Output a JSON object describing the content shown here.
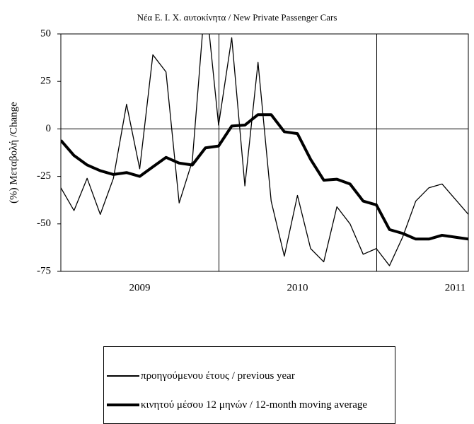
{
  "chart_data": {
    "type": "line",
    "title": "Νέα Ε. Ι. Χ. αυτοκίνητα / New Private Passenger Cars",
    "y_label": "(%) Μεταβολή /Change",
    "categories": [
      null,
      null,
      null,
      null,
      null,
      null,
      "2009",
      null,
      null,
      null,
      null,
      null,
      null,
      null,
      null,
      null,
      null,
      null,
      "2010",
      null,
      null,
      null,
      null,
      null,
      null,
      null,
      null,
      null,
      null,
      null,
      "2011",
      null
    ],
    "series": [
      {
        "name": "προηγούμενου έτους / previous year",
        "color": "#000000",
        "width": 1.3,
        "values": [
          -31,
          -43,
          -26,
          -45,
          -26,
          13,
          -21,
          39,
          30,
          -39,
          -17,
          70,
          2,
          48,
          -30,
          35,
          -38,
          -67,
          -35,
          -63,
          -70,
          -41,
          -50,
          -66,
          -63,
          -72,
          -57,
          -38,
          -31,
          -29,
          -37,
          -45
        ]
      },
      {
        "name": "κινητού μέσου 12 μηνών / 12-month moving average",
        "color": "#000000",
        "width": 4,
        "values": [
          -6,
          -14,
          -19,
          -22,
          -24,
          -23,
          -25,
          -20,
          -15,
          -18,
          -19,
          -10,
          -9,
          1.5,
          2,
          7.5,
          7.5,
          -1.5,
          -2.5,
          -16,
          -27,
          -26.5,
          -29,
          -38,
          -40,
          -53,
          -55,
          -58,
          -58,
          -56,
          -57,
          -58
        ]
      }
    ],
    "ylim": [
      -75,
      50
    ],
    "yticks": [
      -75,
      -50,
      -25,
      0,
      25,
      50
    ],
    "grid": false
  }
}
